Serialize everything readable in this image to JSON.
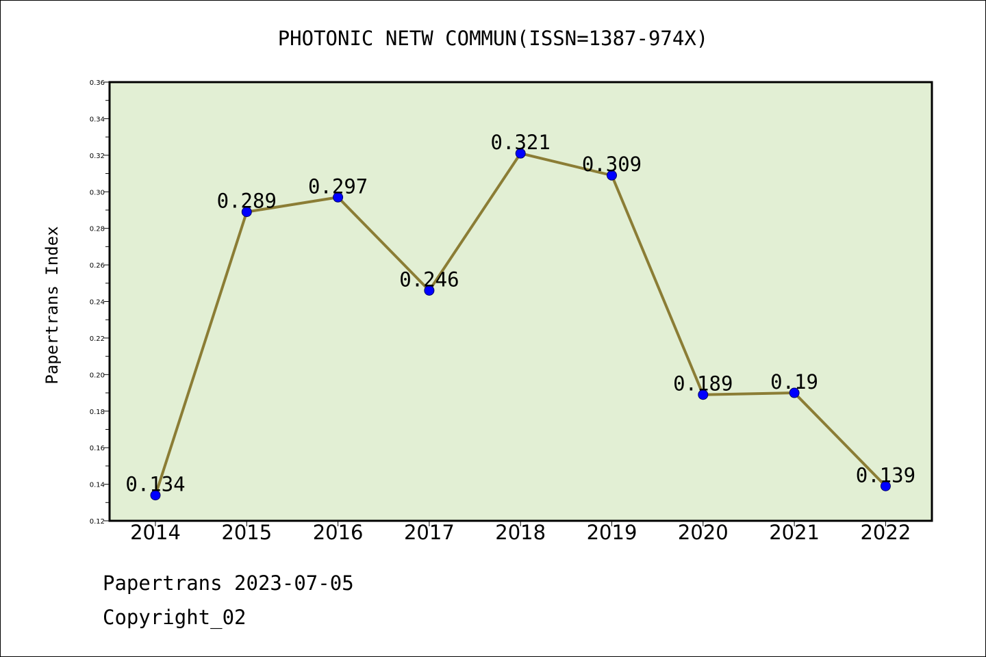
{
  "chart_data": {
    "type": "line",
    "title": "PHOTONIC NETW COMMUN(ISSN=1387-974X)",
    "xlabel": "",
    "ylabel": "Papertrans Index",
    "categories": [
      "2014",
      "2015",
      "2016",
      "2017",
      "2018",
      "2019",
      "2020",
      "2021",
      "2022"
    ],
    "series": [
      {
        "values": [
          0.134,
          0.289,
          0.297,
          0.246,
          0.321,
          0.309,
          0.189,
          0.19,
          0.139
        ],
        "labels": [
          "0.134",
          "0.289",
          "0.297",
          "0.246",
          "0.321",
          "0.309",
          "0.189",
          "0.19",
          "0.139"
        ]
      }
    ],
    "ylim": [
      0.12,
      0.36
    ],
    "yticks": [
      "0.12",
      "0.14",
      "0.16",
      "0.18",
      "0.20",
      "0.22",
      "0.24",
      "0.26",
      "0.28",
      "0.30",
      "0.32",
      "0.34",
      "0.36"
    ],
    "grid": false,
    "colors": {
      "plot_background": "#e2efd4",
      "line": "#8b7d35",
      "marker": "#0000ff"
    }
  },
  "footer": {
    "line1": "Papertrans 2023-07-05",
    "line2": "Copyright_02"
  }
}
